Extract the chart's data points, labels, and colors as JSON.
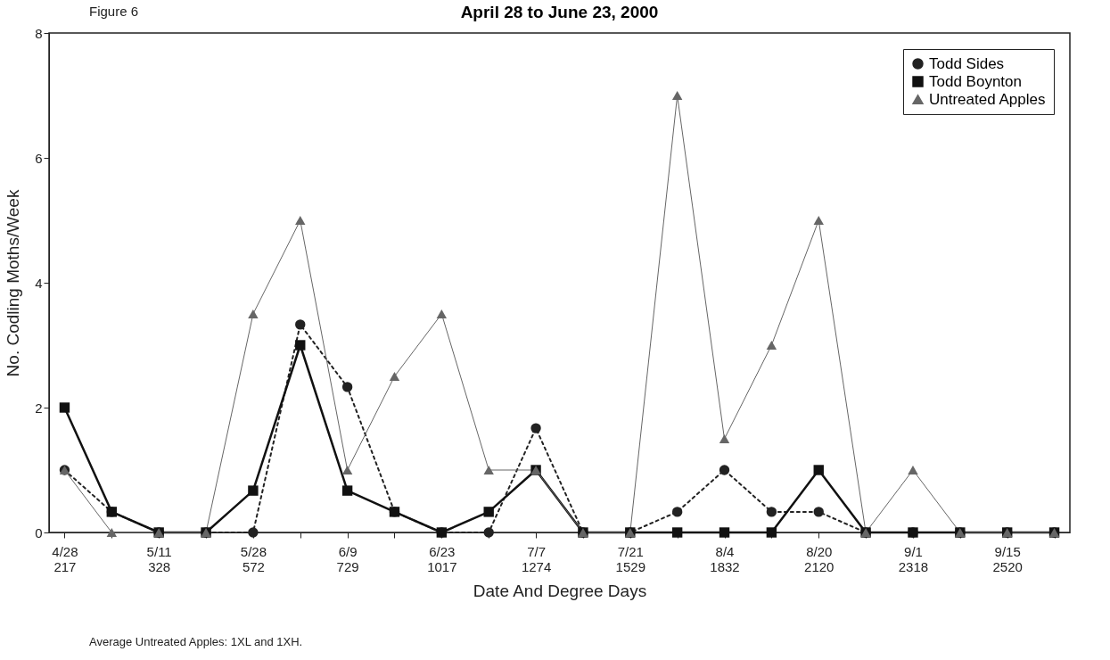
{
  "chart_data": {
    "type": "line",
    "title": "April 28 to June 23, 2000",
    "xlabel": "Date And Degree Days",
    "ylabel": "No. Codling Moths/Week",
    "annotations": [
      "Figure 6",
      "Average Untreated Apples: 1XL and 1XH."
    ],
    "categories": [
      "4/28\n217",
      null,
      "5/11\n328",
      null,
      "5/28\n572",
      null,
      "6/9\n729",
      null,
      "6/23\n1017",
      null,
      "7/7\n1274",
      null,
      "7/21\n1529",
      null,
      "8/4\n1832",
      null,
      "8/20\n2120",
      null,
      "9/1\n2318",
      null,
      "9/15\n2520",
      null
    ],
    "series": [
      {
        "name": "Todd Sides",
        "color": "#222222",
        "marker": "circle",
        "line_style": "dotted",
        "values": [
          1,
          0.33,
          0,
          0,
          0,
          3.33,
          2.33,
          0.33,
          0,
          0,
          1.67,
          0,
          0,
          0.33,
          1,
          0.33,
          0.33,
          0,
          0,
          0,
          0,
          0
        ]
      },
      {
        "name": "Todd Boynton",
        "color": "#111111",
        "marker": "square",
        "line_style": "solid",
        "values": [
          2,
          0.33,
          0,
          0,
          0.67,
          3,
          0.67,
          0.33,
          0,
          0.33,
          1,
          0,
          0,
          0,
          0,
          0,
          1,
          0,
          0,
          0,
          0,
          0
        ]
      },
      {
        "name": "Untreated Apples",
        "color": "#666666",
        "marker": "triangle",
        "line_style": "solid",
        "values": [
          1,
          0,
          0,
          0,
          3.5,
          5,
          1,
          2.5,
          3.5,
          1,
          1,
          0,
          0,
          7,
          1.5,
          3,
          5,
          0,
          1,
          0,
          0,
          0
        ]
      }
    ],
    "ylim": [
      0,
      8
    ],
    "yticks": [
      0,
      2,
      4,
      6,
      8
    ],
    "grid": false,
    "legend": "top right"
  }
}
